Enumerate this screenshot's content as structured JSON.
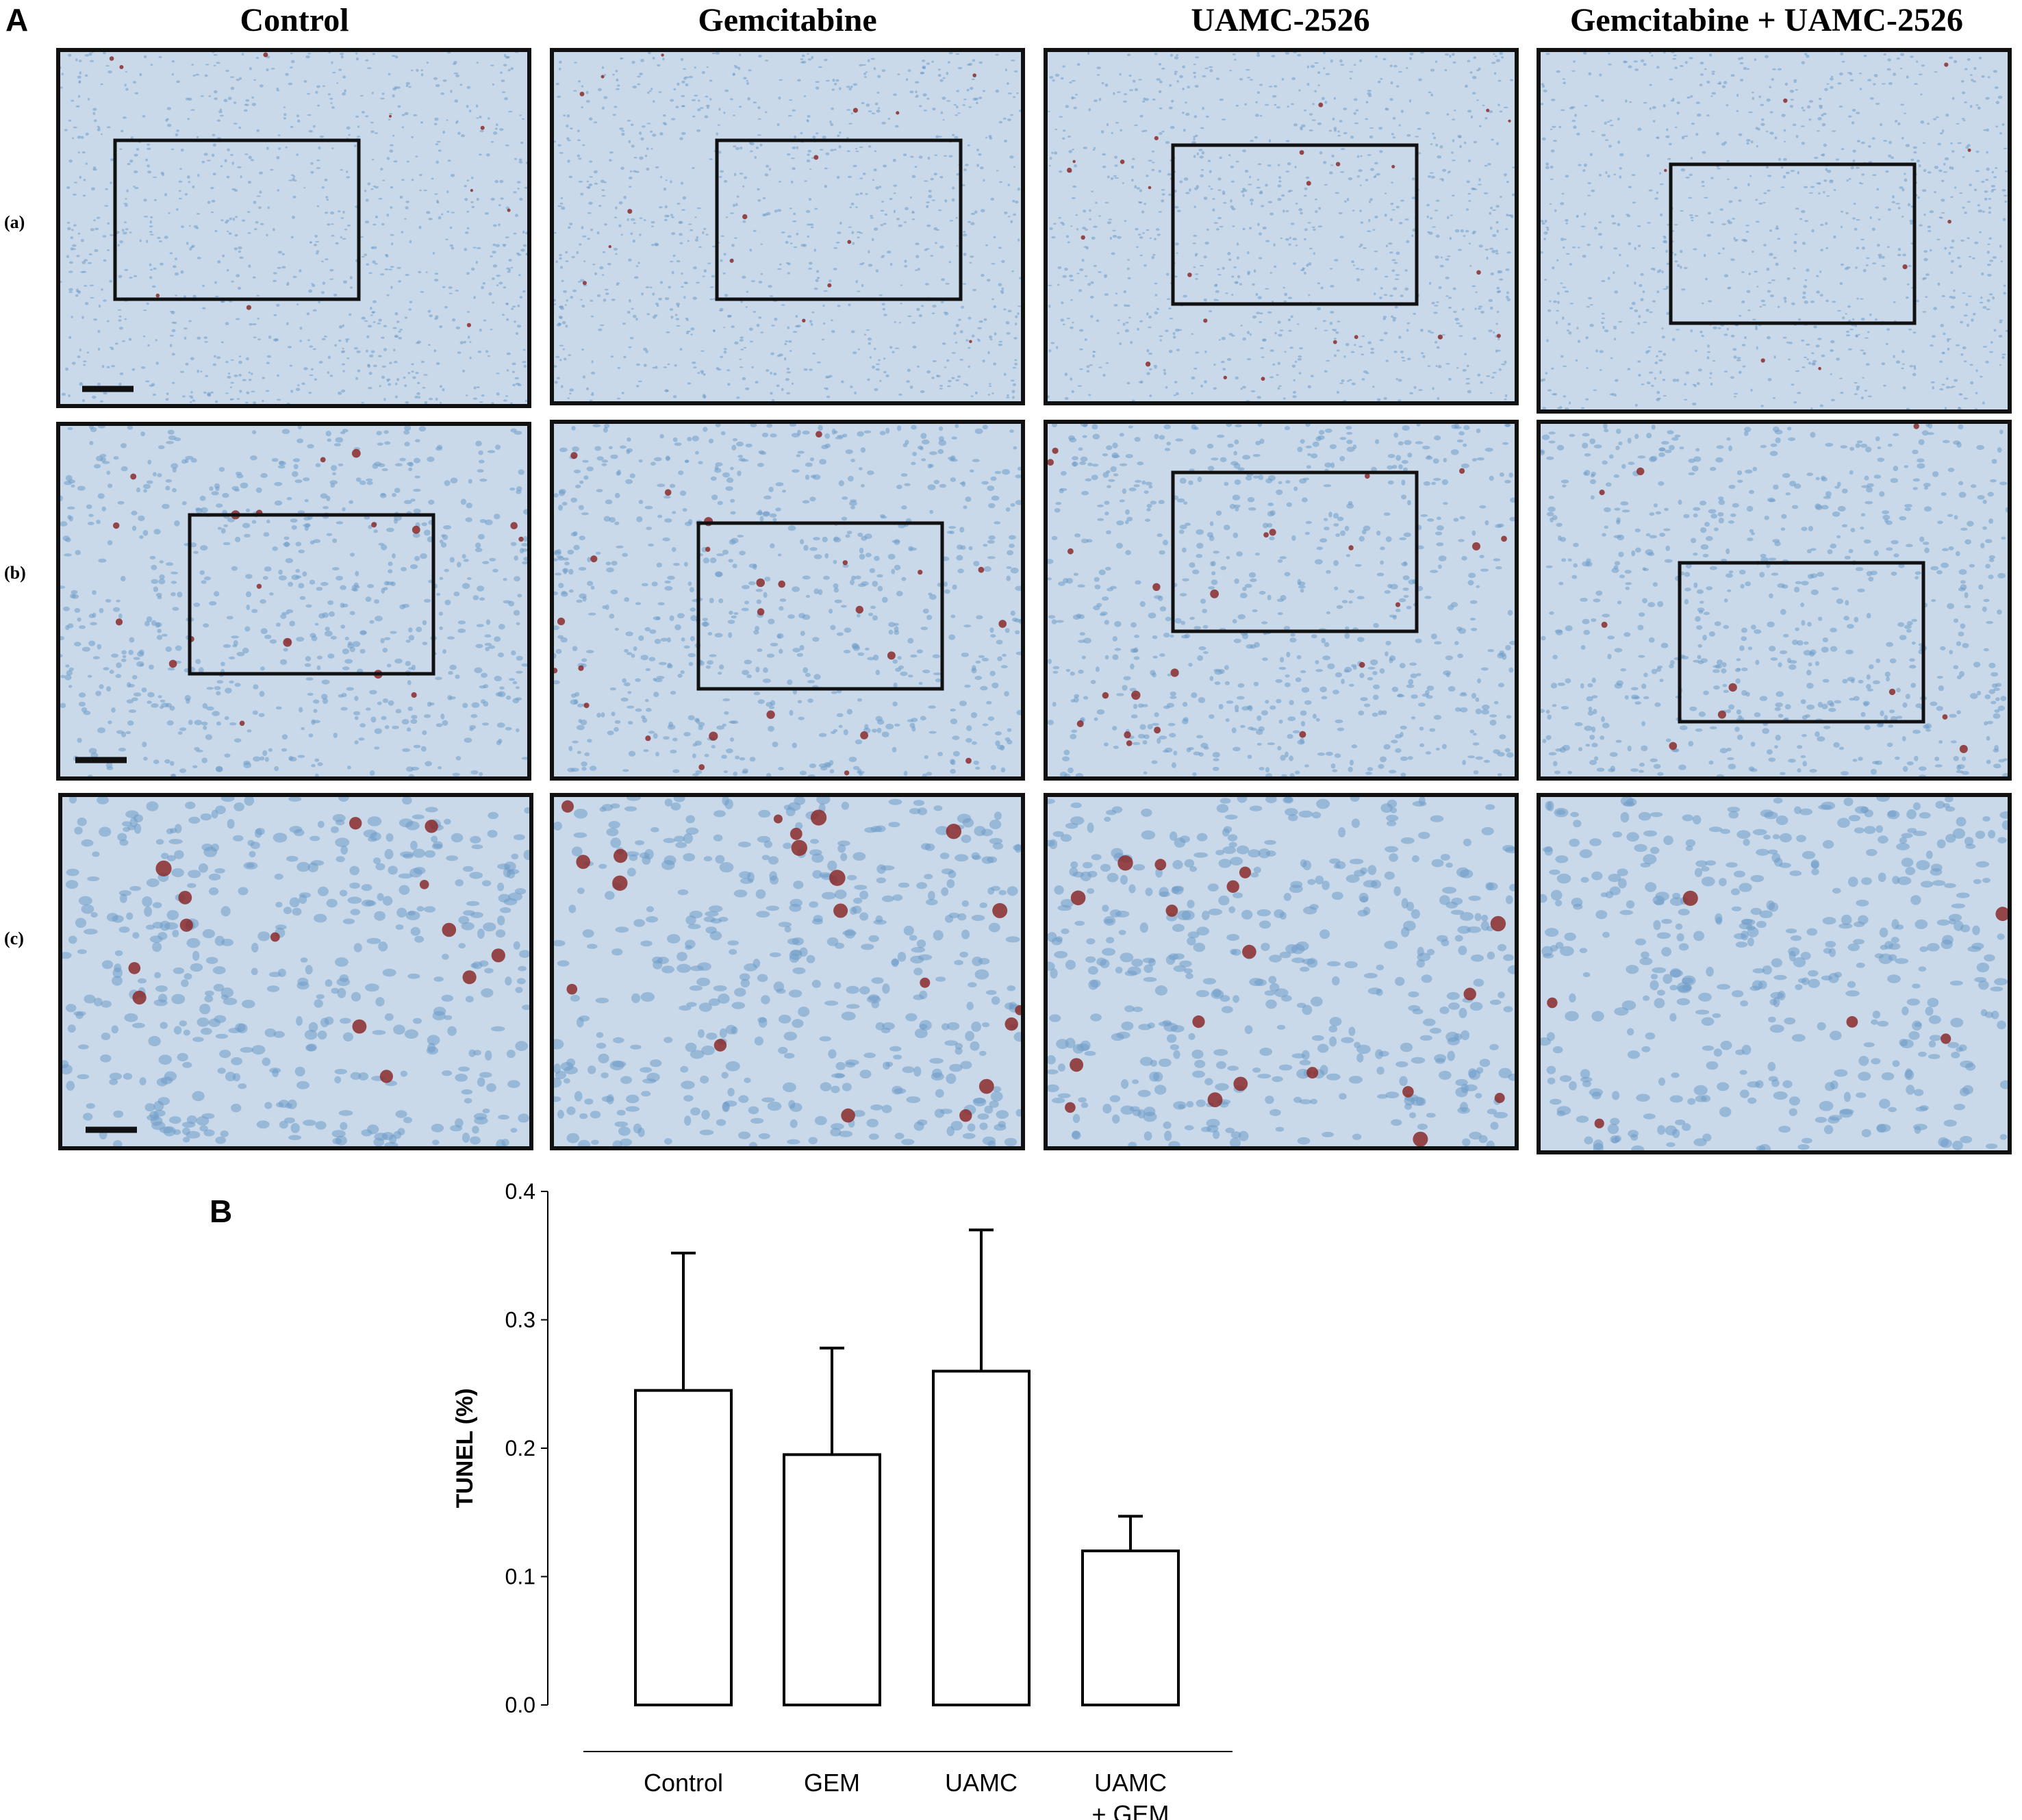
{
  "panel_a": {
    "letter": "A",
    "columns": [
      "Control",
      "Gemcitabine",
      "UAMC-2526",
      "Gemcitabine + UAMC-2526"
    ],
    "rows": [
      "(a)",
      "(b)",
      "(c)"
    ]
  },
  "panel_b": {
    "letter": "B"
  },
  "chart_data": {
    "type": "bar",
    "categories": [
      "Control",
      "GEM",
      "UAMC",
      "UAMC\n+ GEM"
    ],
    "values": [
      0.245,
      0.195,
      0.26,
      0.12
    ],
    "error_upper": [
      0.352,
      0.278,
      0.37,
      0.147
    ],
    "ylabel": "TUNEL  (%)",
    "xlabel": "",
    "title": "",
    "ylim": [
      0,
      0.4
    ],
    "yticks": [
      "0.0",
      "0.1",
      "0.2",
      "0.3",
      "0.4"
    ],
    "grid": false,
    "bar_fill": "#ffffff",
    "bar_stroke": "#000000"
  },
  "colors": {
    "tissue_bg": "#c9d9ea",
    "nucleus": "#6f9cc9",
    "tunel_positive": "#8b2a2a",
    "frame": "#111111"
  }
}
